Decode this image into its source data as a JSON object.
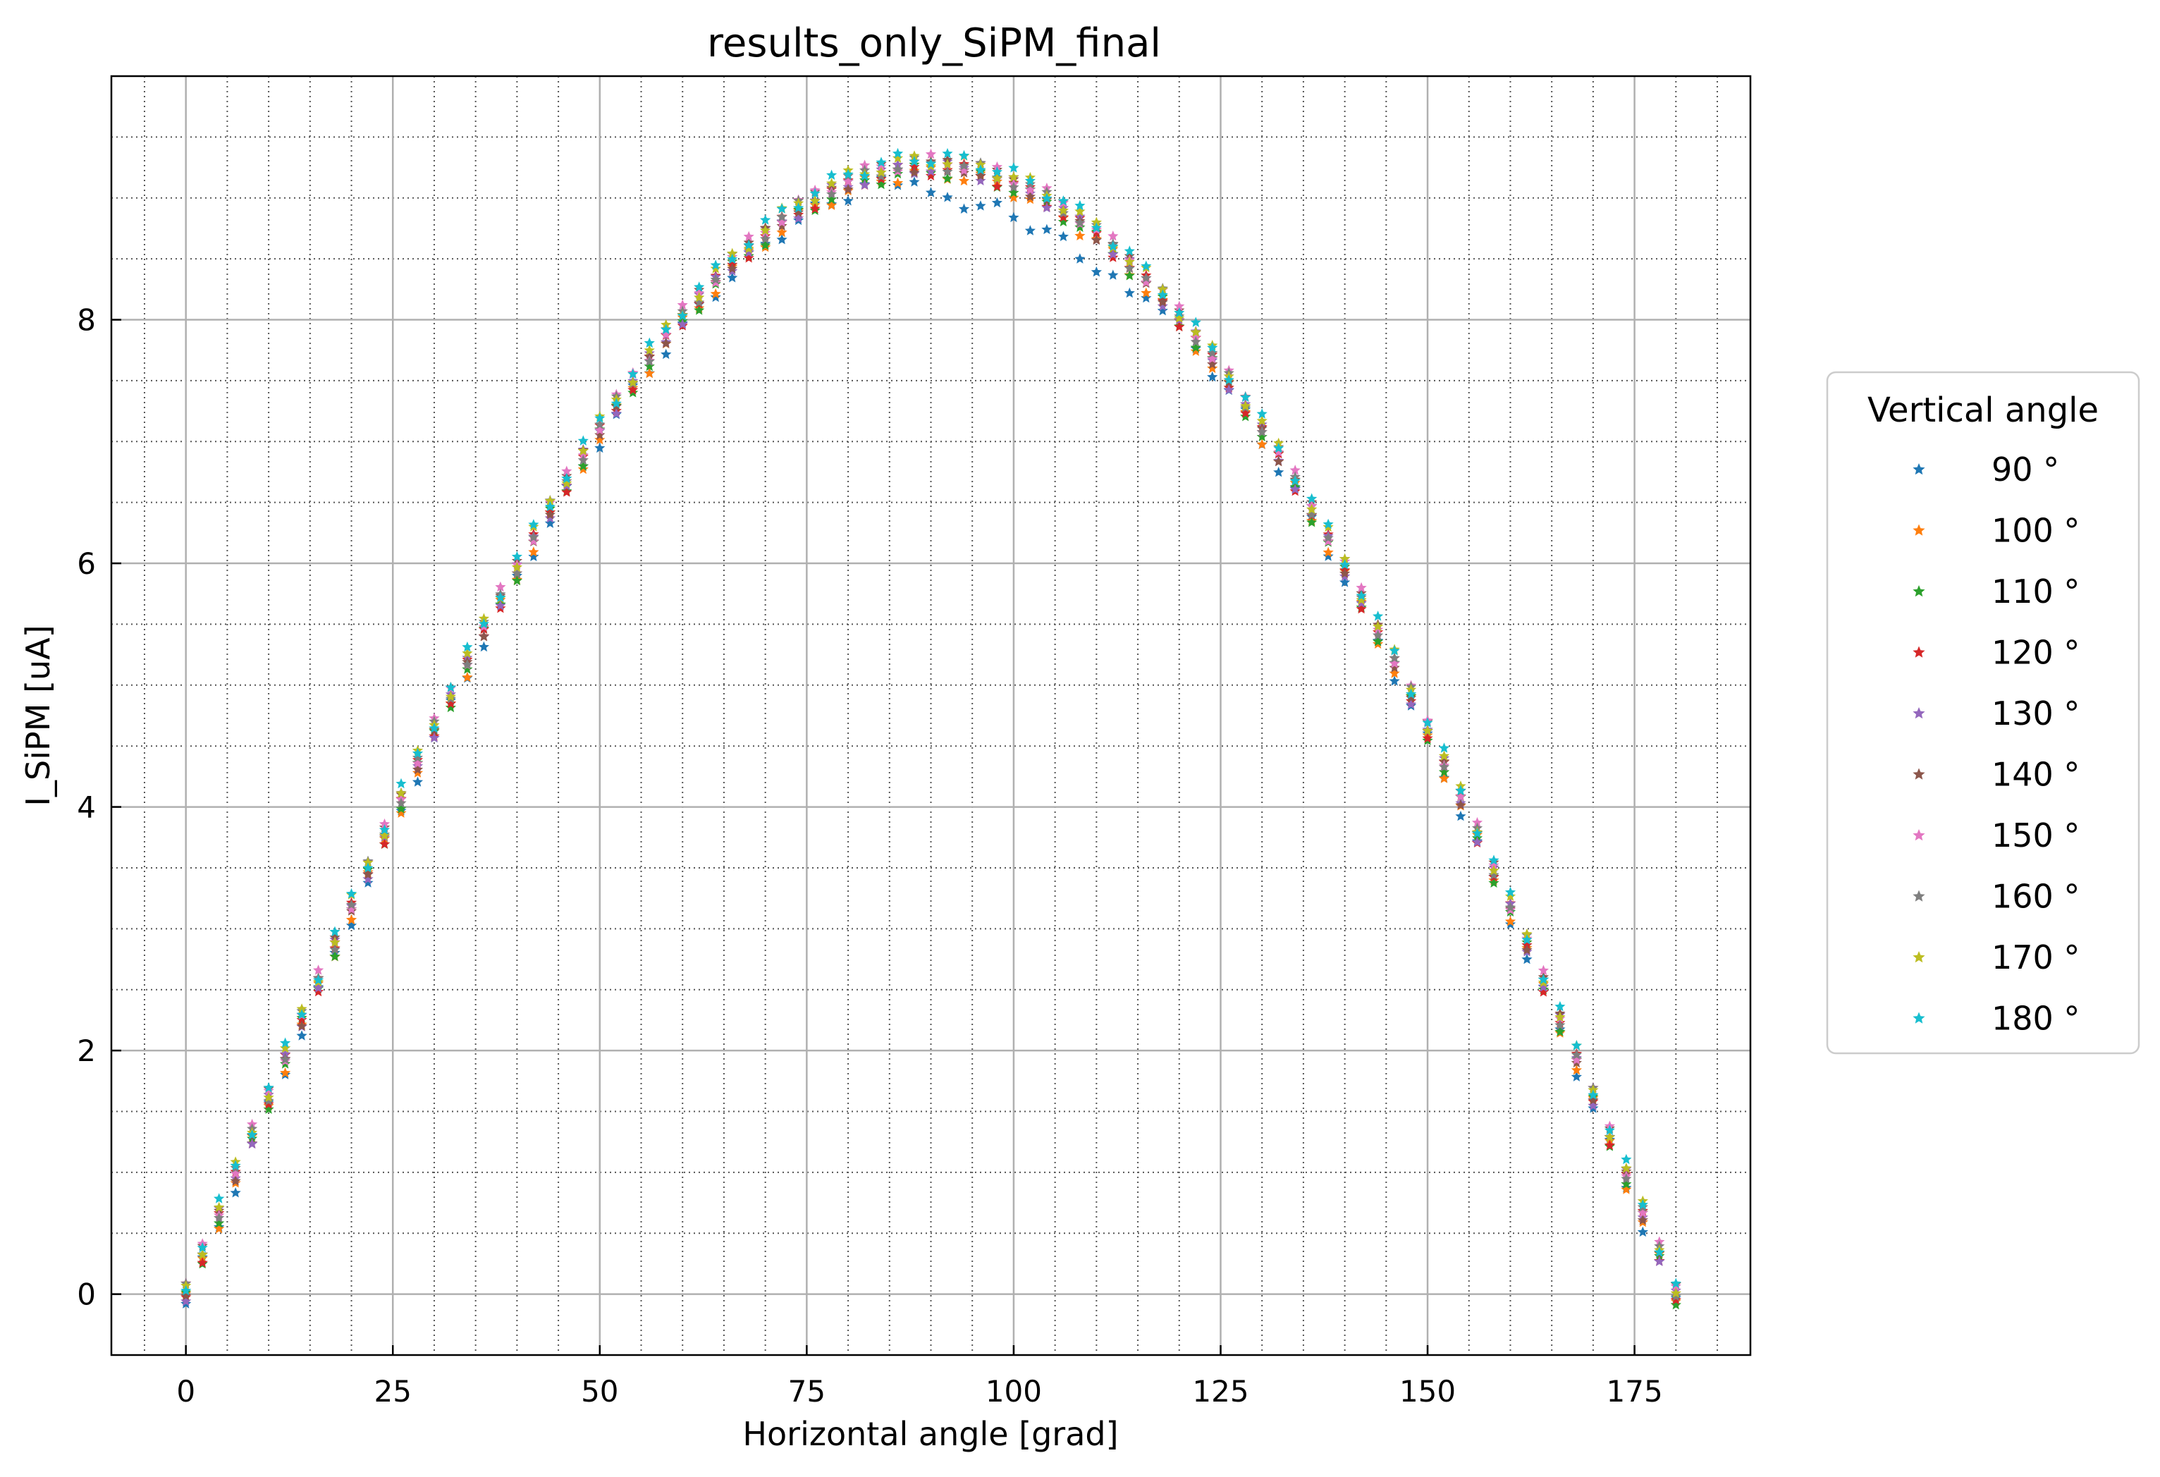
{
  "chart_data": {
    "type": "scatter",
    "title": "results_only_SiPM_final",
    "xlabel": "Horizontal angle [grad]",
    "ylabel": "I_SiPM [uA]",
    "xlim": [
      -9,
      189
    ],
    "ylim": [
      -0.5,
      10.0
    ],
    "x_ticks": [
      "0",
      "25",
      "50",
      "75",
      "100",
      "125",
      "150",
      "175"
    ],
    "y_ticks": [
      "0",
      "2",
      "4",
      "6",
      "8"
    ],
    "x_tick_values": [
      0,
      25,
      50,
      75,
      100,
      125,
      150,
      175
    ],
    "y_tick_values": [
      0,
      2,
      4,
      6,
      8
    ],
    "x_minor_step": 5,
    "y_minor_step": 0.5,
    "grid": "major solid, minor dotted",
    "legend": {
      "title": "Vertical angle",
      "placement": "outside-right"
    },
    "x": [
      0,
      2,
      4,
      6,
      8,
      10,
      12,
      14,
      16,
      18,
      20,
      22,
      24,
      26,
      28,
      30,
      32,
      34,
      36,
      38,
      40,
      42,
      44,
      46,
      48,
      50,
      52,
      54,
      56,
      58,
      60,
      62,
      64,
      66,
      68,
      70,
      72,
      74,
      76,
      78,
      80,
      82,
      84,
      86,
      88,
      90,
      92,
      94,
      96,
      98,
      100,
      102,
      104,
      106,
      108,
      110,
      112,
      114,
      116,
      118,
      120,
      122,
      124,
      126,
      128,
      130,
      132,
      134,
      136,
      138,
      140,
      142,
      144,
      146,
      148,
      150,
      152,
      154,
      156,
      158,
      160,
      162,
      164,
      166,
      168,
      170,
      172,
      174,
      176,
      178,
      180
    ],
    "peak_current": 9.25,
    "series": [
      {
        "name": "90 °",
        "color": "#1f77b4",
        "offset": -0.08,
        "phase": 0.0
      },
      {
        "name": "100 °",
        "color": "#ff7f0e",
        "offset": -0.05,
        "phase": 1.1
      },
      {
        "name": "110 °",
        "color": "#2ca02c",
        "offset": -0.03,
        "phase": 2.3
      },
      {
        "name": "120 °",
        "color": "#d62728",
        "offset": -0.01,
        "phase": 3.4
      },
      {
        "name": "130 °",
        "color": "#9467bd",
        "offset": 0.0,
        "phase": 4.6
      },
      {
        "name": "140 °",
        "color": "#8c564b",
        "offset": 0.02,
        "phase": 5.7
      },
      {
        "name": "150 °",
        "color": "#e377c2",
        "offset": 0.05,
        "phase": 0.7
      },
      {
        "name": "160 °",
        "color": "#7f7f7f",
        "offset": 0.03,
        "phase": 1.9
      },
      {
        "name": "170 °",
        "color": "#bcbd22",
        "offset": 0.06,
        "phase": 3.0
      },
      {
        "name": "180 °",
        "color": "#17becf",
        "offset": 0.08,
        "phase": 4.2
      }
    ]
  }
}
